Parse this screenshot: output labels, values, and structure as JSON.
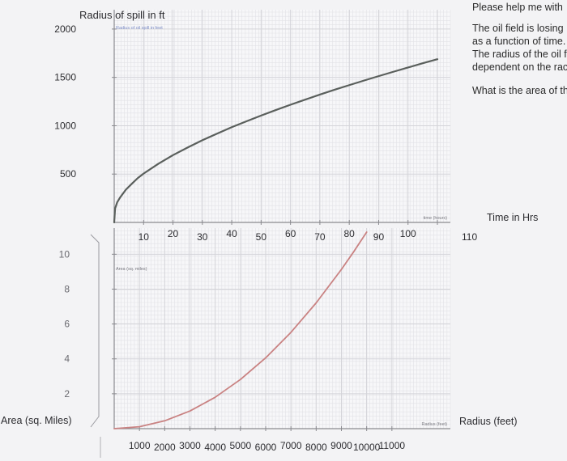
{
  "side_panel": {
    "heading": "Please help me with",
    "para_lines": [
      "The oil field is losing",
      "as a function of time.",
      "The radius of the oil f",
      "dependent on the rac"
    ],
    "question": "What is the area of th"
  },
  "chart_data": [
    {
      "type": "line",
      "title": "Radius of spill in ft",
      "inner_label": "Radius of oil spill in feet",
      "xlabel": "Time in Hrs",
      "xlabel_small": "time (hours)",
      "x_ticks": [
        10,
        20,
        30,
        40,
        50,
        60,
        70,
        80,
        90,
        100,
        110
      ],
      "y_ticks": [
        500,
        1000,
        1500,
        2000
      ],
      "xlim": [
        0,
        110
      ],
      "ylim": [
        0,
        2200
      ],
      "grid": true,
      "series": [
        {
          "color": "#5a5f5c",
          "x": [
            0,
            0.3,
            1,
            2,
            4,
            6,
            8,
            10,
            15,
            20,
            25,
            30,
            35,
            40,
            45,
            50,
            55,
            60,
            65,
            70,
            75,
            80,
            85,
            90,
            95,
            100,
            105,
            110
          ],
          "y": [
            0,
            144,
            207,
            258,
            340,
            400,
            458,
            505,
            606,
            696,
            775,
            850,
            918,
            985,
            1046,
            1105,
            1162,
            1217,
            1270,
            1322,
            1372,
            1420,
            1467,
            1513,
            1558,
            1602,
            1646,
            1688
          ]
        }
      ]
    },
    {
      "type": "line",
      "title": "",
      "inner_label": "Area (sq. miles)",
      "xlabel": "Radius (feet)",
      "xlabel_small": "Radius (feet)",
      "ylabel": "Area (sq. Miles)",
      "x_ticks": [
        1000,
        2000,
        3000,
        4000,
        5000,
        6000,
        7000,
        8000,
        9000,
        10000,
        11000
      ],
      "y_ticks": [
        2,
        4,
        6,
        8,
        10
      ],
      "xlim": [
        0,
        12000
      ],
      "ylim": [
        0,
        11.5
      ],
      "grid": true,
      "series": [
        {
          "color": "#c98282",
          "x": [
            0,
            1000,
            2000,
            3000,
            4000,
            5000,
            6000,
            7000,
            8000,
            9000,
            9500,
            10000
          ],
          "y": [
            0,
            0.11,
            0.45,
            1.01,
            1.8,
            2.82,
            4.06,
            5.52,
            7.21,
            9.13,
            10.17,
            11.27
          ]
        }
      ]
    }
  ]
}
